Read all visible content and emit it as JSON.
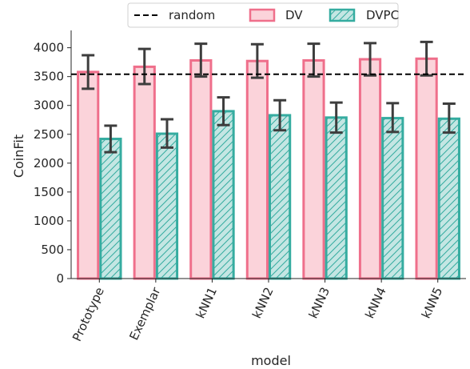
{
  "chart_data": {
    "type": "bar",
    "xlabel": "model",
    "ylabel": "CoinFit",
    "ylim": [
      0,
      4300
    ],
    "yticks": [
      0,
      500,
      1000,
      1500,
      2000,
      2500,
      3000,
      3500,
      4000
    ],
    "categories": [
      "Prototype",
      "Exemplar",
      "kNN1",
      "kNN2",
      "kNN3",
      "kNN4",
      "kNN5"
    ],
    "reference_line": {
      "name": "random",
      "value": 3540,
      "style": "dashed",
      "color": "#000000"
    },
    "series": [
      {
        "name": "DV",
        "values": [
          3580,
          3670,
          3780,
          3770,
          3780,
          3800,
          3810
        ],
        "err_low": [
          3290,
          3370,
          3500,
          3480,
          3500,
          3520,
          3520
        ],
        "err_high": [
          3870,
          3980,
          4070,
          4060,
          4070,
          4080,
          4100
        ],
        "fill": "#fbd3da",
        "edge": "#ef6f8b",
        "hatch": false
      },
      {
        "name": "DVPC",
        "values": [
          2420,
          2510,
          2900,
          2830,
          2790,
          2780,
          2770
        ],
        "err_low": [
          2190,
          2270,
          2660,
          2570,
          2530,
          2540,
          2530
        ],
        "err_high": [
          2650,
          2760,
          3140,
          3090,
          3050,
          3040,
          3030
        ],
        "fill": "#c4e6e3",
        "edge": "#35aca0",
        "hatch": true
      }
    ],
    "errorbar_color": "#3d3d3d",
    "legend": {
      "placement": "top",
      "ncol": 3
    }
  }
}
